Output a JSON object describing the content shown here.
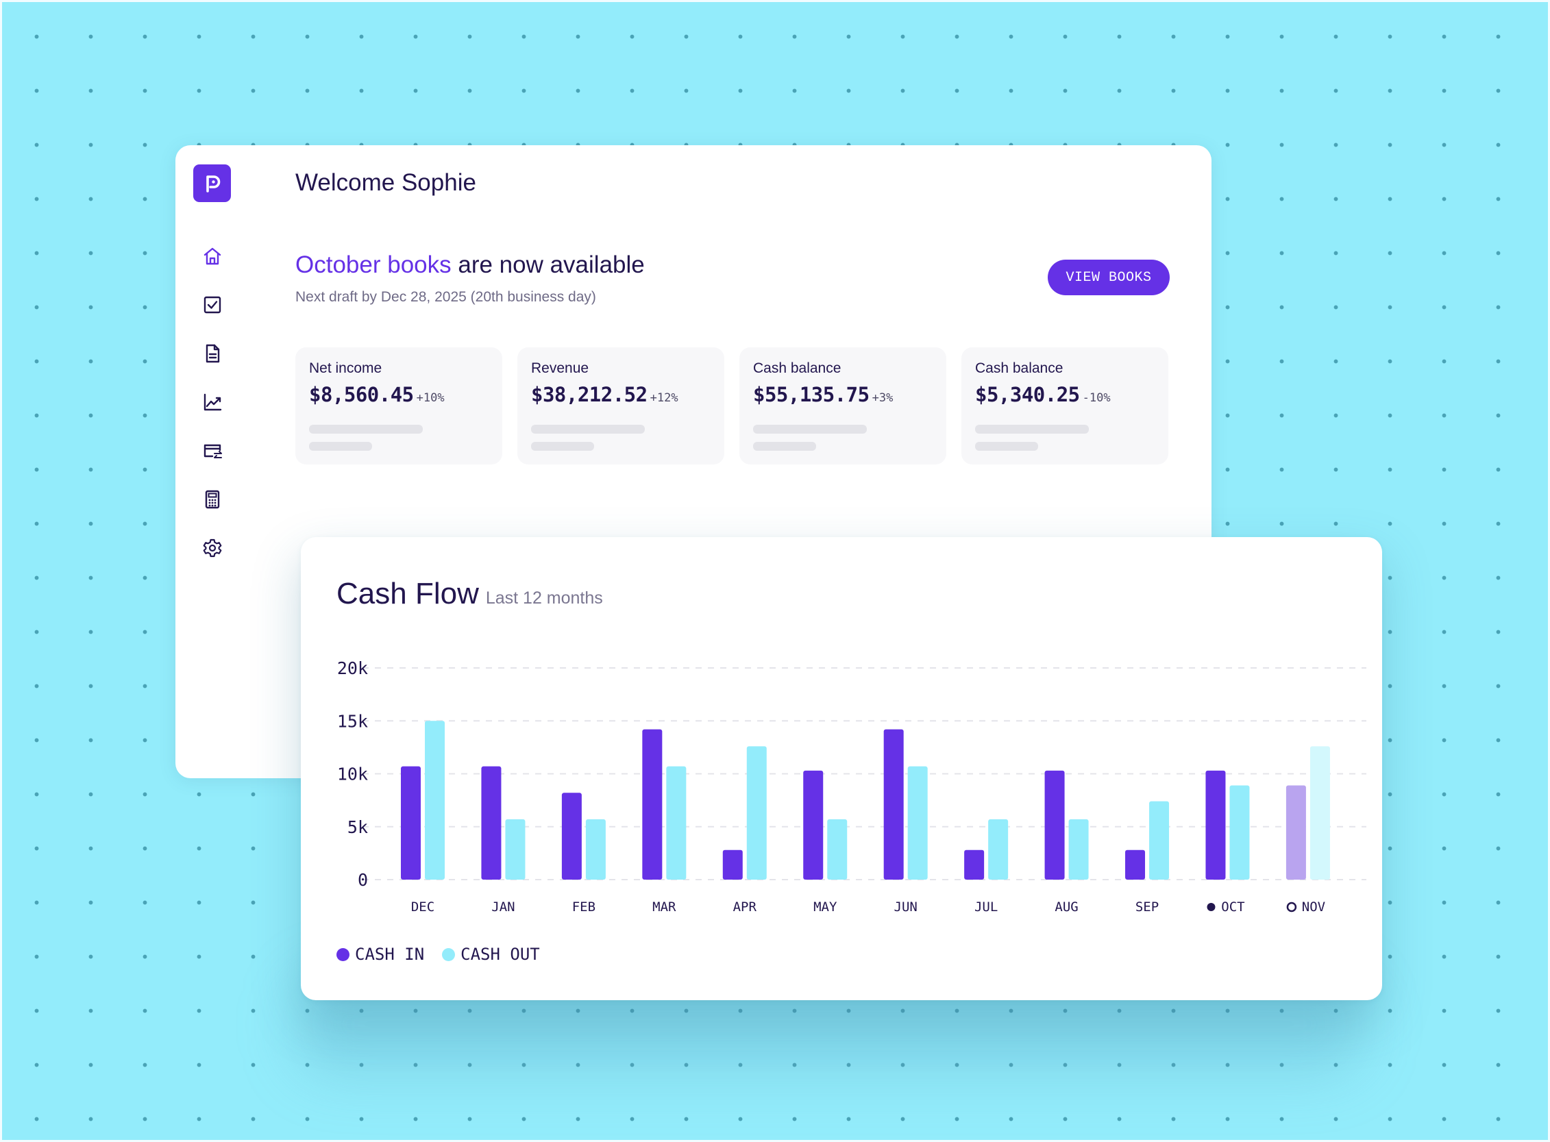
{
  "colors": {
    "accent": "#6531e6",
    "cash_in": "#6531e6",
    "cash_out": "#93ecfb",
    "cash_in_pending": "#b9a4ef",
    "cash_out_pending": "#d3f8fd",
    "text_dark": "#22164e",
    "muted": "#6e6a86"
  },
  "sidebar": {
    "logo_icon": "p-logo-icon",
    "items": [
      {
        "icon": "home-icon"
      },
      {
        "icon": "checkbox-icon"
      },
      {
        "icon": "document-icon"
      },
      {
        "icon": "chart-icon"
      },
      {
        "icon": "card-transfer-icon"
      },
      {
        "icon": "calculator-icon"
      },
      {
        "icon": "gear-icon"
      }
    ]
  },
  "header": {
    "welcome": "Welcome Sophie"
  },
  "banner": {
    "headline_accent": "October books",
    "headline_rest": " are now available",
    "subline": "Next draft by Dec 28, 2025 (20th business day)",
    "button_label": "VIEW BOOKS"
  },
  "stats": [
    {
      "label": "Net income",
      "value": "$8,560.45",
      "change": "+10%"
    },
    {
      "label": "Revenue",
      "value": "$38,212.52",
      "change": "+12%"
    },
    {
      "label": "Cash balance",
      "value": "$55,135.75",
      "change": "+3%"
    },
    {
      "label": "Cash balance",
      "value": "$5,340.25",
      "change": "-10%"
    }
  ],
  "cashflow": {
    "title": "Cash Flow",
    "subtitle": "Last 12 months"
  },
  "chart_data": {
    "type": "bar",
    "title": "Cash Flow",
    "subtitle": "Last 12 months",
    "categories": [
      "DEC",
      "JAN",
      "FEB",
      "MAR",
      "APR",
      "MAY",
      "JUN",
      "JUL",
      "AUG",
      "SEP",
      "OCT",
      "NOV"
    ],
    "category_markers": {
      "OCT": "filled-dot",
      "NOV": "hollow-dot"
    },
    "series": [
      {
        "name": "CASH IN",
        "values": [
          10.7,
          10.7,
          8.2,
          14.2,
          2.8,
          10.3,
          14.2,
          2.8,
          10.3,
          2.8,
          10.3,
          8.9
        ]
      },
      {
        "name": "CASH OUT",
        "values": [
          15.0,
          5.7,
          5.7,
          10.7,
          12.6,
          5.7,
          10.7,
          5.7,
          5.7,
          7.4,
          8.9,
          12.6
        ]
      }
    ],
    "y_ticks": [
      "0",
      "5k",
      "10k",
      "15k",
      "20k"
    ],
    "y_tick_values": [
      0,
      5,
      10,
      15,
      20
    ],
    "ylim": [
      0,
      20
    ],
    "y_unit": "thousands",
    "grid": true,
    "legend_placement": "bottom-left",
    "pending_category": "NOV"
  }
}
